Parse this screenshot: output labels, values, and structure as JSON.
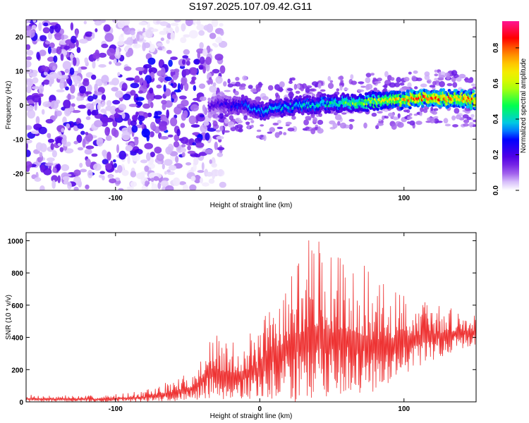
{
  "figure_title": "S197.2025.107.09.42.G11",
  "chart_data": [
    {
      "type": "heatmap",
      "title": "",
      "xlabel": "Height of straight line (km)",
      "ylabel": "Frequency (Hz)",
      "xlim": [
        -162,
        150
      ],
      "ylim": [
        -25,
        25
      ],
      "x_ticks": [
        -100,
        0,
        100
      ],
      "y_ticks": [
        -20,
        -10,
        0,
        10,
        20
      ],
      "colorbar": {
        "label": "Normalized spectral amplitude",
        "range": [
          0,
          0.95
        ],
        "ticks": [
          0.0,
          0.2,
          0.4,
          0.6,
          0.8
        ],
        "colormap": [
          "#ffffff",
          "#8a2be2",
          "#0000ff",
          "#00c0ff",
          "#00ff00",
          "#ffff00",
          "#ff8000",
          "#ff0000",
          "#ff1493"
        ]
      },
      "ridge": {
        "description_points": [
          {
            "x": -35,
            "y": 0.0
          },
          {
            "x": -20,
            "y": 0.0
          },
          {
            "x": -10,
            "y": 0.0
          },
          {
            "x": 0,
            "y": -2.0
          },
          {
            "x": 10,
            "y": -1.0
          },
          {
            "x": 30,
            "y": 0.0
          },
          {
            "x": 50,
            "y": 0.5
          },
          {
            "x": 75,
            "y": 1.0
          },
          {
            "x": 100,
            "y": 1.5
          },
          {
            "x": 120,
            "y": 2.0
          },
          {
            "x": 150,
            "y": 1.5
          }
        ],
        "amplitude_points": [
          {
            "x": -35,
            "a": 0.2
          },
          {
            "x": 0,
            "a": 0.4
          },
          {
            "x": 50,
            "a": 0.5
          },
          {
            "x": 90,
            "a": 0.75
          },
          {
            "x": 110,
            "a": 0.9
          },
          {
            "x": 150,
            "a": 0.9
          }
        ]
      },
      "noise_region": {
        "x_range": [
          -162,
          -35
        ],
        "y_range": [
          -25,
          25
        ]
      }
    },
    {
      "type": "line",
      "title": "",
      "xlabel": "Height of straight line (km)",
      "ylabel": "SNR (10 * v/v)",
      "xlim": [
        -162,
        150
      ],
      "ylim": [
        0,
        1050
      ],
      "x_ticks": [
        -100,
        0,
        100
      ],
      "y_ticks": [
        0,
        200,
        400,
        600,
        800,
        1000
      ],
      "color": "#ee3333",
      "envelope": [
        {
          "x": -162,
          "lo": 0,
          "hi": 45
        },
        {
          "x": -110,
          "lo": 0,
          "hi": 40
        },
        {
          "x": -80,
          "lo": 0,
          "hi": 70
        },
        {
          "x": -60,
          "lo": 0,
          "hi": 140
        },
        {
          "x": -45,
          "lo": 10,
          "hi": 200
        },
        {
          "x": -35,
          "lo": 20,
          "hi": 430
        },
        {
          "x": -20,
          "lo": 10,
          "hi": 380
        },
        {
          "x": 0,
          "lo": 20,
          "hi": 450
        },
        {
          "x": 10,
          "lo": 0,
          "hi": 730
        },
        {
          "x": 30,
          "lo": 0,
          "hi": 960
        },
        {
          "x": 36,
          "lo": 10,
          "hi": 1050
        },
        {
          "x": 50,
          "lo": 30,
          "hi": 920
        },
        {
          "x": 65,
          "lo": 40,
          "hi": 930
        },
        {
          "x": 80,
          "lo": 60,
          "hi": 760
        },
        {
          "x": 100,
          "lo": 170,
          "hi": 700
        },
        {
          "x": 120,
          "lo": 260,
          "hi": 620
        },
        {
          "x": 140,
          "lo": 330,
          "hi": 580
        },
        {
          "x": 150,
          "lo": 340,
          "hi": 560
        }
      ]
    }
  ]
}
